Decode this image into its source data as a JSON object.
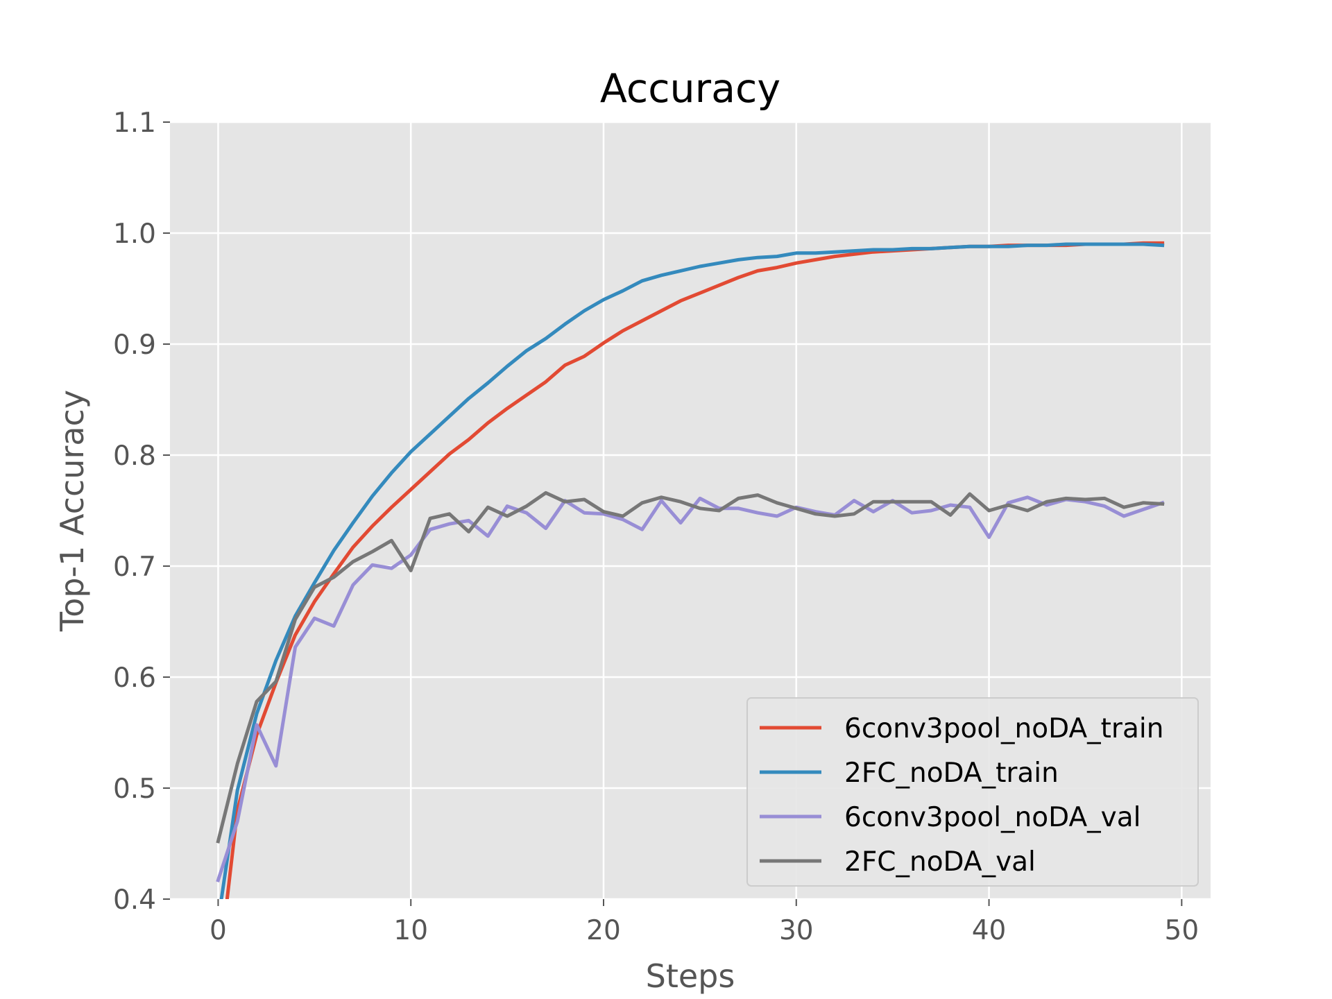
{
  "chart_data": {
    "type": "line",
    "title": "Accuracy",
    "xlabel": "Steps",
    "ylabel": "Top-1 Accuracy",
    "xlim": [
      -2.5,
      51.5
    ],
    "ylim": [
      0.4,
      1.1
    ],
    "xticks": [
      0,
      10,
      20,
      30,
      40,
      50
    ],
    "yticks": [
      0.4,
      0.5,
      0.6,
      0.7,
      0.8,
      0.9,
      1.0,
      1.1
    ],
    "ytick_labels": [
      "0.4",
      "0.5",
      "0.6",
      "0.7",
      "0.8",
      "0.9",
      "1.0",
      "1.1"
    ],
    "grid": true,
    "legend_position": "lower right",
    "x": [
      0,
      1,
      2,
      3,
      4,
      5,
      6,
      7,
      8,
      9,
      10,
      11,
      12,
      13,
      14,
      15,
      16,
      17,
      18,
      19,
      20,
      21,
      22,
      23,
      24,
      25,
      26,
      27,
      28,
      29,
      30,
      31,
      32,
      33,
      34,
      35,
      36,
      37,
      38,
      39,
      40,
      41,
      42,
      43,
      44,
      45,
      46,
      47,
      48,
      49
    ],
    "series": [
      {
        "name": "6conv3pool_noDA_train",
        "color": "#E24A33",
        "values": [
          0.33,
          0.48,
          0.548,
          0.595,
          0.638,
          0.668,
          0.693,
          0.717,
          0.736,
          0.753,
          0.769,
          0.785,
          0.801,
          0.814,
          0.829,
          0.842,
          0.854,
          0.866,
          0.881,
          0.889,
          0.901,
          0.912,
          0.921,
          0.93,
          0.939,
          0.946,
          0.953,
          0.96,
          0.966,
          0.969,
          0.973,
          0.976,
          0.979,
          0.981,
          0.983,
          0.984,
          0.985,
          0.986,
          0.987,
          0.988,
          0.988,
          0.989,
          0.989,
          0.989,
          0.989,
          0.99,
          0.99,
          0.99,
          0.991,
          0.991
        ]
      },
      {
        "name": "2FC_noDA_train",
        "color": "#348ABD",
        "values": [
          0.38,
          0.498,
          0.567,
          0.615,
          0.655,
          0.685,
          0.714,
          0.739,
          0.763,
          0.784,
          0.803,
          0.819,
          0.835,
          0.851,
          0.865,
          0.88,
          0.894,
          0.905,
          0.918,
          0.93,
          0.94,
          0.948,
          0.957,
          0.962,
          0.966,
          0.97,
          0.973,
          0.976,
          0.978,
          0.979,
          0.982,
          0.982,
          0.983,
          0.984,
          0.985,
          0.985,
          0.986,
          0.986,
          0.987,
          0.988,
          0.988,
          0.988,
          0.989,
          0.989,
          0.99,
          0.99,
          0.99,
          0.99,
          0.99,
          0.989
        ]
      },
      {
        "name": "6conv3pool_noDA_val",
        "color": "#988ED5",
        "values": [
          0.417,
          0.47,
          0.557,
          0.52,
          0.627,
          0.653,
          0.646,
          0.683,
          0.701,
          0.698,
          0.71,
          0.733,
          0.738,
          0.741,
          0.727,
          0.754,
          0.748,
          0.734,
          0.759,
          0.748,
          0.747,
          0.742,
          0.733,
          0.759,
          0.739,
          0.761,
          0.752,
          0.752,
          0.748,
          0.745,
          0.753,
          0.749,
          0.746,
          0.759,
          0.749,
          0.759,
          0.748,
          0.75,
          0.755,
          0.753,
          0.726,
          0.757,
          0.762,
          0.755,
          0.76,
          0.758,
          0.754,
          0.745,
          0.751,
          0.757
        ]
      },
      {
        "name": "2FC_noDA_val",
        "color": "#777777",
        "values": [
          0.452,
          0.522,
          0.578,
          0.596,
          0.652,
          0.681,
          0.69,
          0.704,
          0.713,
          0.723,
          0.696,
          0.743,
          0.747,
          0.731,
          0.753,
          0.745,
          0.754,
          0.766,
          0.758,
          0.76,
          0.749,
          0.745,
          0.757,
          0.762,
          0.758,
          0.752,
          0.75,
          0.761,
          0.764,
          0.757,
          0.752,
          0.747,
          0.745,
          0.747,
          0.758,
          0.758,
          0.758,
          0.758,
          0.746,
          0.765,
          0.75,
          0.755,
          0.75,
          0.758,
          0.761,
          0.76,
          0.761,
          0.753,
          0.757,
          0.756
        ]
      }
    ]
  }
}
